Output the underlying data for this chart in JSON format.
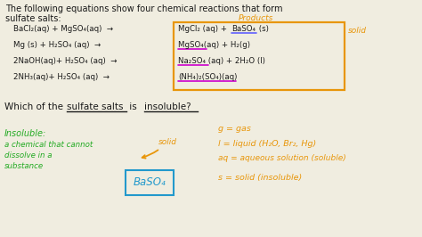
{
  "background_color": "#f0ede0",
  "title_color": "#1a1a1a",
  "products_label_color": "#e8960a",
  "solid_label_color": "#e8960a",
  "box_edge_color": "#e8960a",
  "baso4_underline_color": "#6060ff",
  "magenta_underline_color": "#cc00cc",
  "question_color": "#1a1a1a",
  "insoluble_color": "#22aa22",
  "solid_arrow_color": "#e8960a",
  "baso4_box_color": "#2299cc",
  "baso4_box_border": "#2299cc",
  "legend_color": "#e8960a",
  "reactions_left": [
    "BaCl₂(aq) + MgSO₄(aq)  →",
    "Mg (s) + H₂SO₄ (aq)  →",
    "2NaOH(aq)+ H₂SO₄ (aq)  →",
    "2NH₃(aq)+ H₂SO₄ (aq)  →"
  ],
  "legend_lines": [
    "g = gas",
    "l = liquid (H₂O, Br₂, Hg)",
    "aq = aqueous solution (soluble)",
    "s = solid (insoluble)"
  ]
}
